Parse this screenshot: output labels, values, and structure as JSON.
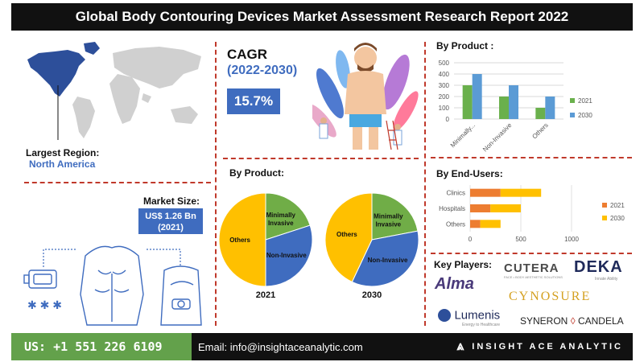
{
  "title": "Global Body Contouring Devices Market Assessment Research Report 2022",
  "largest_region": {
    "label": "Largest Region:",
    "value": "North America"
  },
  "cagr": {
    "label": "CAGR",
    "period": "(2022-2030)",
    "value": "15.7%"
  },
  "market_size": {
    "label": "Market Size:",
    "value_line1": "US$ 1.26 Bn",
    "value_line2": "(2021)"
  },
  "pie_section": {
    "title": "By Product:"
  },
  "bar_section": {
    "title": "By Product :"
  },
  "hbar_section": {
    "title": "By End-Users:"
  },
  "key_players": {
    "label": "Key Players:",
    "logos": [
      "CUTERA",
      "DEKA",
      "Alma",
      "CYNOSURE",
      "Lumenis",
      "SYNERON",
      "CANDELA"
    ],
    "taglines": {
      "cutera": "FACE • BODY AESTHETIC SOLUTIONS",
      "deka": "Innate Ability",
      "lumenis": "Energy to Healthcare"
    }
  },
  "footer": {
    "phone": "US: +1 551 226 6109",
    "email": "Email: info@insightaceanalytic.com",
    "brand": "INSIGHT ACE ANALYTIC"
  },
  "colors": {
    "blue": "#3f6cbf",
    "orange": "#ed7d31",
    "yellow": "#ffc000",
    "green": "#70ad47",
    "bar_green": "#6ab04c",
    "bar_blue": "#5b9bd5",
    "dark": "#111111",
    "red_divider": "#c0392b"
  },
  "chart_data": [
    {
      "type": "bar",
      "title": "By Product :",
      "categories": [
        "Minimally...",
        "Non-Invasive",
        "Others"
      ],
      "series": [
        {
          "name": "2021",
          "values": [
            300,
            200,
            100
          ]
        },
        {
          "name": "2030",
          "values": [
            400,
            300,
            200
          ]
        }
      ],
      "ylim": [
        0,
        500
      ],
      "yticks": [
        0,
        100,
        200,
        300,
        400,
        500
      ],
      "grid": true,
      "legend": "right"
    },
    {
      "type": "pie",
      "title": "By Product:",
      "label": "2021",
      "slices": [
        {
          "name": "Minimally Invasive",
          "value": 20
        },
        {
          "name": "Non-Invasive",
          "value": 30
        },
        {
          "name": "Others",
          "value": 50
        }
      ]
    },
    {
      "type": "pie",
      "title": "By Product:",
      "label": "2030",
      "slices": [
        {
          "name": "Minimally Invasive",
          "value": 22
        },
        {
          "name": "Non-Invasive",
          "value": 35
        },
        {
          "name": "Others",
          "value": 43
        }
      ]
    },
    {
      "type": "bar",
      "orientation": "horizontal",
      "stacked": true,
      "title": "By End-Users:",
      "categories": [
        "Clinics",
        "Hospitals",
        "Others"
      ],
      "series": [
        {
          "name": "2021",
          "values": [
            300,
            200,
            100
          ]
        },
        {
          "name": "2030",
          "values": [
            400,
            300,
            200
          ]
        }
      ],
      "xlim": [
        0,
        1000
      ],
      "xticks": [
        0,
        500,
        1000
      ],
      "legend": "right"
    }
  ]
}
